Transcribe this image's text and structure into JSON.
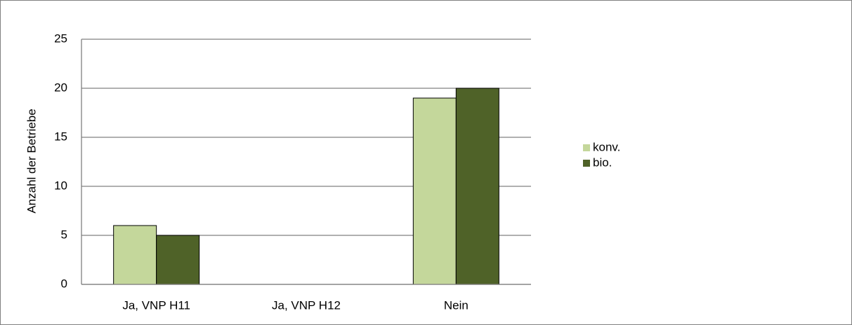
{
  "chart_data": {
    "type": "bar",
    "y_label": "Anzahl der Betriebe",
    "categories": [
      "Ja, VNP H11",
      "Ja, VNP H12",
      "Nein"
    ],
    "series": [
      {
        "name": "konv.",
        "color": "#c4d79b",
        "values": [
          6,
          0,
          19
        ]
      },
      {
        "name": "bio.",
        "color": "#4f6228",
        "values": [
          5,
          0,
          20
        ]
      }
    ],
    "ylim": [
      0,
      25
    ],
    "yticks": [
      0,
      5,
      10,
      15,
      20,
      25
    ],
    "grid": true,
    "legend": "right"
  }
}
